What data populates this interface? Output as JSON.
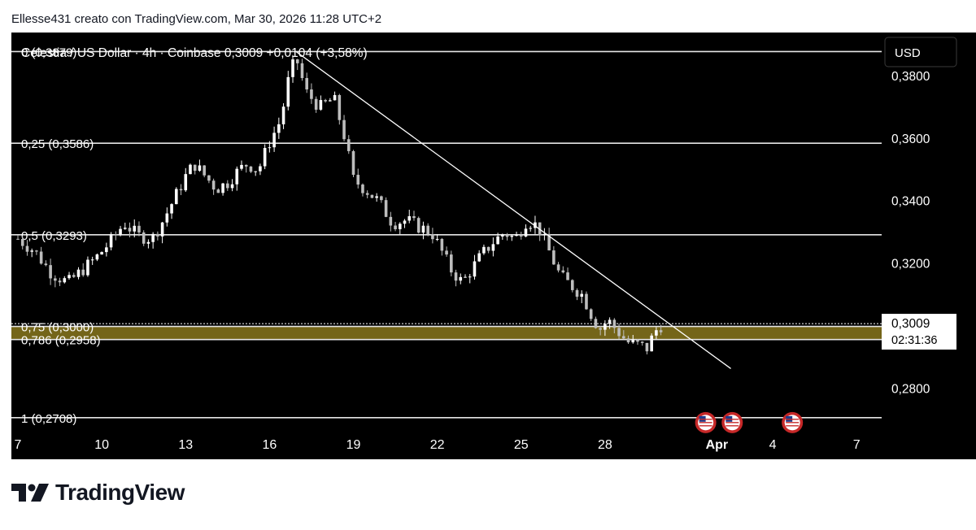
{
  "header": {
    "attribution": "Ellesse431 creato con TradingView.com, Mar 30, 2026 11:28 UTC+2"
  },
  "chart_data": {
    "type": "candlestick",
    "symbol_line": "Celestia / US Dollar · 4h · Coinbase  0,3009  +0,0104 (+3,58%)",
    "currency_button": "USD",
    "y_axis": {
      "ticks": [
        "0,3800",
        "0,3600",
        "0,3400",
        "0,3200",
        "0,2800"
      ],
      "tick_values": [
        0.38,
        0.36,
        0.34,
        0.32,
        0.28
      ],
      "range": [
        0.264,
        0.394
      ]
    },
    "x_axis": {
      "labels": [
        "7",
        "10",
        "13",
        "16",
        "19",
        "22",
        "25",
        "28",
        "Apr",
        "4",
        "7"
      ],
      "label_days": [
        7,
        10,
        13,
        16,
        19,
        22,
        25,
        28,
        32,
        34,
        37
      ],
      "range_days": [
        7,
        39
      ]
    },
    "current_price": {
      "value": "0,3009",
      "countdown": "02:31:36",
      "numeric": 0.3009
    },
    "fib_levels": [
      {
        "label": "0 (0,3879)",
        "value": 0.3879
      },
      {
        "label": "0,25 (0,3586)",
        "value": 0.3586
      },
      {
        "label": "0,5 (0,3293)",
        "value": 0.3293
      },
      {
        "label": "0,75 (0,3000)",
        "value": 0.3
      },
      {
        "label": "0,786 (0,2958)",
        "value": 0.2958
      },
      {
        "label": "1 (0,2708)",
        "value": 0.2708
      }
    ],
    "zone": {
      "top": 0.3,
      "bottom": 0.2958,
      "color": "#7a6a1a"
    },
    "trendline": {
      "start": {
        "day": 16.95,
        "value": 0.3879
      },
      "end": {
        "day": 32.5,
        "value": 0.2865
      }
    },
    "event_flags_days": [
      31.6,
      32.55,
      34.7
    ],
    "close_path": [
      [
        7.0,
        0.328
      ],
      [
        7.6,
        0.324
      ],
      [
        8.2,
        0.317
      ],
      [
        8.8,
        0.314
      ],
      [
        9.3,
        0.318
      ],
      [
        9.8,
        0.322
      ],
      [
        10.3,
        0.327
      ],
      [
        10.8,
        0.333
      ],
      [
        11.3,
        0.329
      ],
      [
        11.8,
        0.328
      ],
      [
        12.2,
        0.334
      ],
      [
        12.6,
        0.341
      ],
      [
        13.0,
        0.348
      ],
      [
        13.3,
        0.352
      ],
      [
        13.7,
        0.348
      ],
      [
        14.1,
        0.344
      ],
      [
        14.5,
        0.346
      ],
      [
        14.9,
        0.35
      ],
      [
        15.2,
        0.352
      ],
      [
        15.6,
        0.35
      ],
      [
        16.0,
        0.359
      ],
      [
        16.4,
        0.366
      ],
      [
        16.7,
        0.38
      ],
      [
        16.95,
        0.386
      ],
      [
        17.3,
        0.375
      ],
      [
        17.8,
        0.37
      ],
      [
        18.3,
        0.373
      ],
      [
        18.7,
        0.36
      ],
      [
        19.0,
        0.347
      ],
      [
        19.4,
        0.344
      ],
      [
        19.9,
        0.34
      ],
      [
        20.4,
        0.333
      ],
      [
        20.9,
        0.334
      ],
      [
        21.3,
        0.332
      ],
      [
        21.8,
        0.33
      ],
      [
        22.1,
        0.325
      ],
      [
        22.5,
        0.318
      ],
      [
        22.9,
        0.314
      ],
      [
        23.2,
        0.318
      ],
      [
        23.6,
        0.323
      ],
      [
        24.0,
        0.327
      ],
      [
        24.4,
        0.33
      ],
      [
        24.8,
        0.328
      ],
      [
        25.2,
        0.334
      ],
      [
        25.6,
        0.332
      ],
      [
        26.0,
        0.324
      ],
      [
        26.4,
        0.316
      ],
      [
        26.8,
        0.313
      ],
      [
        27.2,
        0.31
      ],
      [
        27.5,
        0.304
      ],
      [
        27.8,
        0.299
      ],
      [
        28.1,
        0.302
      ],
      [
        28.5,
        0.298
      ],
      [
        28.8,
        0.295
      ],
      [
        29.2,
        0.294
      ],
      [
        29.5,
        0.293
      ],
      [
        29.8,
        0.2985
      ],
      [
        30.0,
        0.3003
      ],
      [
        30.1,
        0.3009
      ]
    ]
  },
  "colors": {
    "background": "#000000",
    "candle_up": "#ffffff",
    "candle_down": "#bdbdbd",
    "level_line": "#e6e6e6",
    "text": "#ffffff",
    "zone": "#7a6a1a"
  },
  "logo": {
    "text": "TradingView"
  },
  "icons": {
    "event": "us-flag-icon",
    "logo": "tradingview-logo-icon"
  }
}
